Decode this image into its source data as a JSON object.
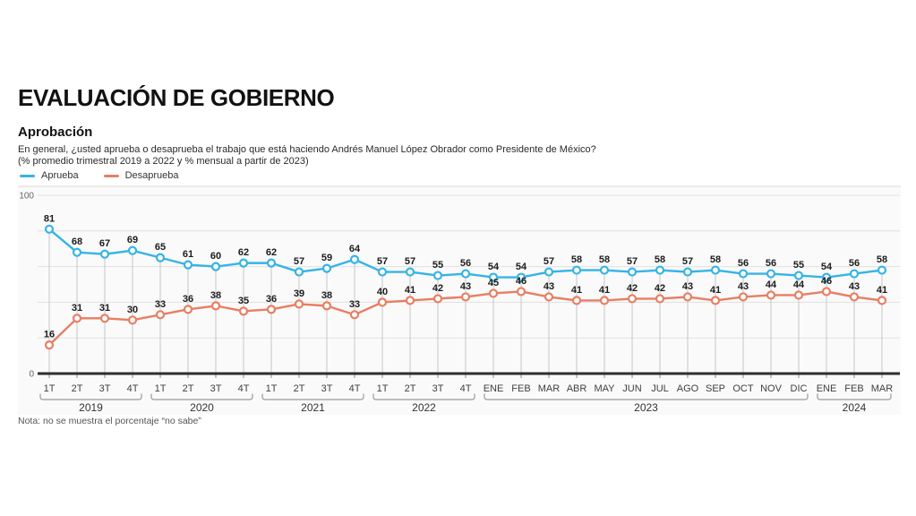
{
  "header": {
    "title": "EVALUACIÓN DE GOBIERNO",
    "subtitle": "Aprobación",
    "question_line1": "En general, ¿usted aprueba o desaprueba el trabajo que está haciendo Andrés Manuel López Obrador como Presidente de México?",
    "question_line2": "(% promedio trimestral 2019 a 2022 y % mensual a partir de 2023)"
  },
  "legend": [
    {
      "label": "Aprueba",
      "color": "#35b4e5"
    },
    {
      "label": "Desaprueba",
      "color": "#e87e62"
    }
  ],
  "note": "Nota: no se muestra el porcentaje “no sabe”",
  "chart_data": {
    "type": "line",
    "title": "Aprobación",
    "ylim": [
      0,
      100
    ],
    "ytick_labels_shown": [
      "100",
      "0"
    ],
    "gridline_values": [
      20,
      40,
      60,
      80,
      100
    ],
    "grid": true,
    "legend_position": "top-left",
    "x_labels": [
      "1T",
      "2T",
      "3T",
      "4T",
      "1T",
      "2T",
      "3T",
      "4T",
      "1T",
      "2T",
      "3T",
      "4T",
      "1T",
      "2T",
      "3T",
      "4T",
      "ENE",
      "FEB",
      "MAR",
      "ABR",
      "MAY",
      "JUN",
      "JUL",
      "AGO",
      "SEP",
      "OCT",
      "NOV",
      "DIC",
      "ENE",
      "FEB",
      "MAR"
    ],
    "year_groups": [
      {
        "year": "2019",
        "from": 0,
        "to": 3
      },
      {
        "year": "2020",
        "from": 4,
        "to": 7
      },
      {
        "year": "2021",
        "from": 8,
        "to": 11
      },
      {
        "year": "2022",
        "from": 12,
        "to": 15
      },
      {
        "year": "2023",
        "from": 16,
        "to": 27
      },
      {
        "year": "2024",
        "from": 28,
        "to": 30
      }
    ],
    "series": [
      {
        "name": "Aprueba",
        "color": "#35b4e5",
        "values": [
          81,
          68,
          67,
          69,
          65,
          61,
          60,
          62,
          62,
          57,
          59,
          64,
          57,
          57,
          55,
          56,
          54,
          54,
          57,
          58,
          58,
          57,
          58,
          57,
          58,
          56,
          56,
          55,
          54,
          56,
          58
        ]
      },
      {
        "name": "Desaprueba",
        "color": "#e87e62",
        "values": [
          16,
          31,
          31,
          30,
          33,
          36,
          38,
          35,
          36,
          39,
          38,
          33,
          40,
          41,
          42,
          43,
          45,
          46,
          43,
          41,
          41,
          42,
          42,
          43,
          41,
          43,
          44,
          44,
          46,
          43,
          41
        ]
      }
    ]
  }
}
